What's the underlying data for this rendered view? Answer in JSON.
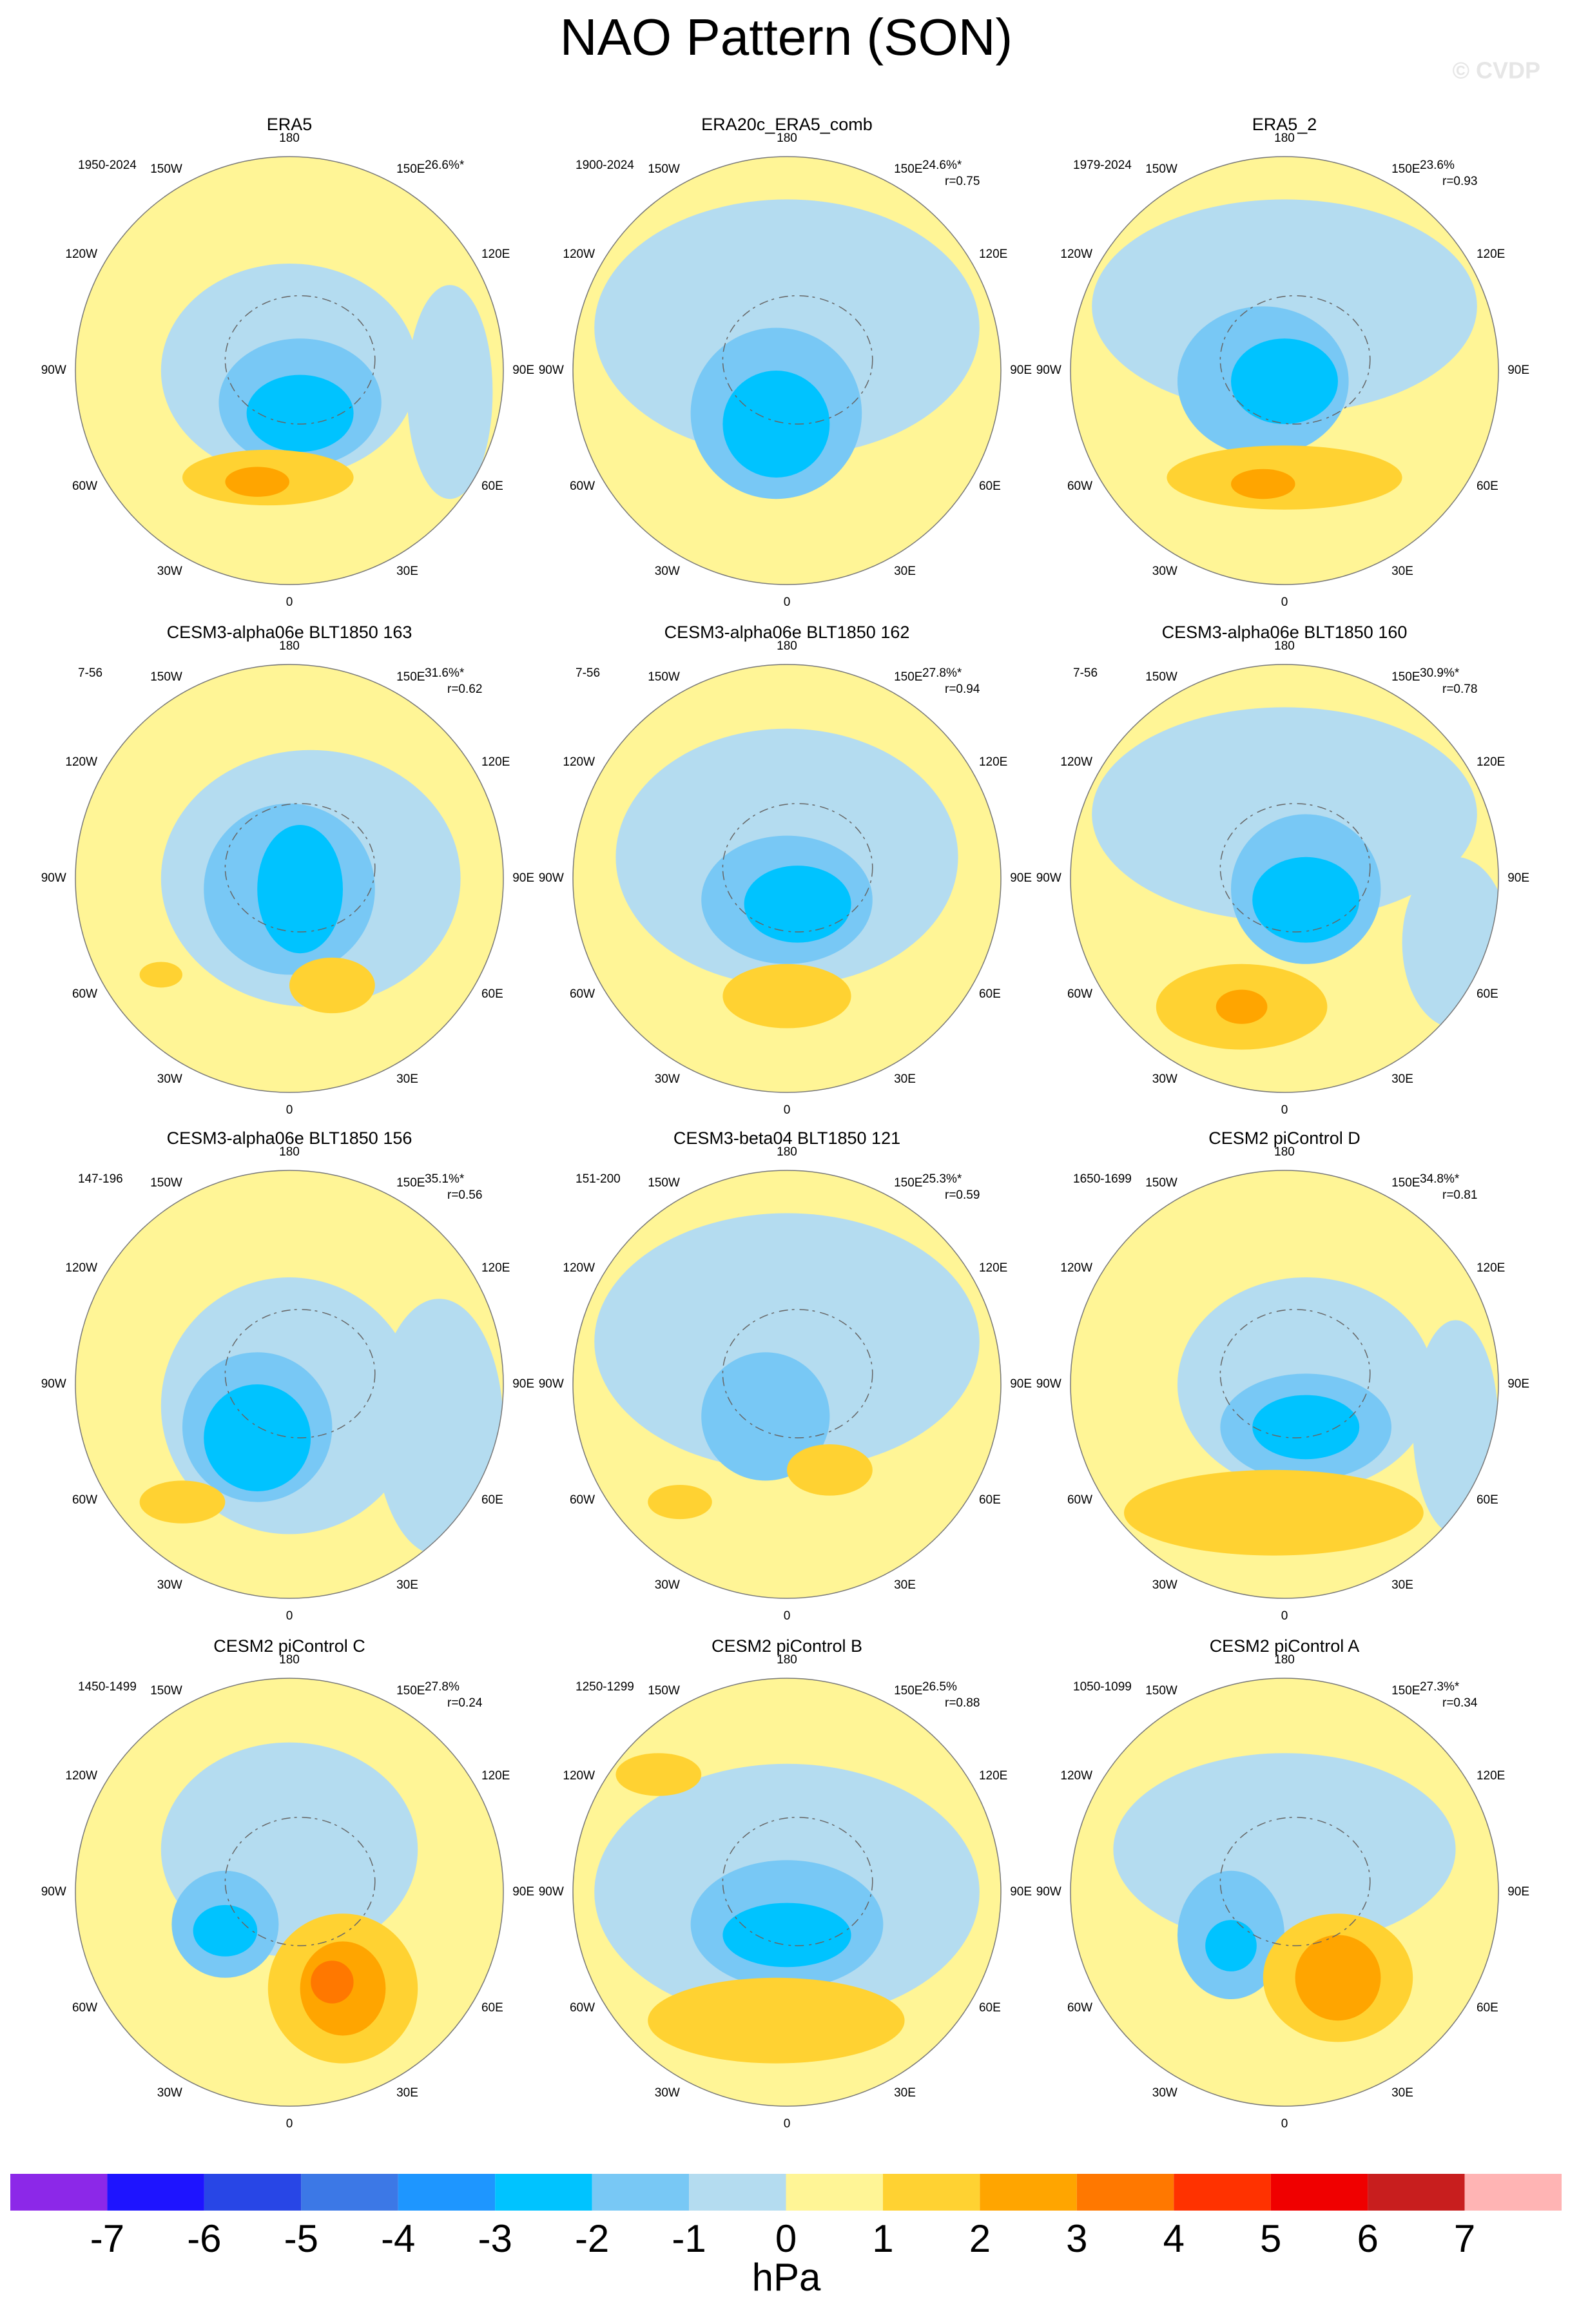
{
  "title": "NAO Pattern (SON)",
  "watermark": "© CVDP",
  "longitude_labels": [
    "180",
    "150E",
    "120E",
    "90E",
    "60E",
    "30E",
    "0",
    "30W",
    "60W",
    "90W",
    "120W",
    "150W"
  ],
  "panels": [
    {
      "title": "ERA5",
      "period": "1950-2024",
      "variance": "26.6%*"
    },
    {
      "title": "ERA20c_ERA5_comb",
      "period": "1900-2024",
      "variance": "24.6%*",
      "correlation": "r=0.75"
    },
    {
      "title": "ERA5_2",
      "period": "1979-2024",
      "variance": "23.6%",
      "correlation": "r=0.93"
    },
    {
      "title": "CESM3-alpha06e BLT1850 163",
      "period": "7-56",
      "variance": "31.6%*",
      "correlation": "r=0.62"
    },
    {
      "title": "CESM3-alpha06e BLT1850 162",
      "period": "7-56",
      "variance": "27.8%*",
      "correlation": "r=0.94"
    },
    {
      "title": "CESM3-alpha06e BLT1850 160",
      "period": "7-56",
      "variance": "30.9%*",
      "correlation": "r=0.78"
    },
    {
      "title": "CESM3-alpha06e BLT1850 156",
      "period": "147-196",
      "variance": "35.1%*",
      "correlation": "r=0.56"
    },
    {
      "title": "CESM3-beta04 BLT1850 121",
      "period": "151-200",
      "variance": "25.3%*",
      "correlation": "r=0.59"
    },
    {
      "title": "CESM2 piControl D",
      "period": "1650-1699",
      "variance": "34.8%*",
      "correlation": "r=0.81"
    },
    {
      "title": "CESM2 piControl C",
      "period": "1450-1499",
      "variance": "27.8%",
      "correlation": "r=0.24"
    },
    {
      "title": "CESM2 piControl B",
      "period": "1250-1299",
      "variance": "26.5%",
      "correlation": "r=0.88"
    },
    {
      "title": "CESM2 piControl A",
      "period": "1050-1099",
      "variance": "27.3%*",
      "correlation": "r=0.34"
    }
  ],
  "colorbar": {
    "colors": [
      "#8c28e8",
      "#1e14ff",
      "#2846e6",
      "#3c78e6",
      "#1e96ff",
      "#00c3ff",
      "#78c8f5",
      "#b4dcf0",
      "#fff596",
      "#ffd232",
      "#ffa500",
      "#ff7800",
      "#ff3200",
      "#f00000",
      "#c81e1e",
      "#ffb4b4"
    ],
    "ticks": [
      -7,
      -6,
      -5,
      -4,
      -3,
      -2,
      -1,
      0,
      1,
      2,
      3,
      4,
      5,
      6,
      7
    ],
    "label": "hPa"
  }
}
